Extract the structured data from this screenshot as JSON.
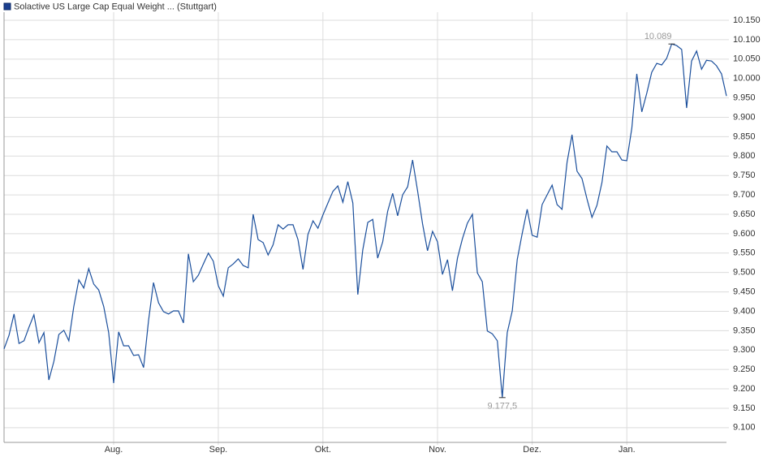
{
  "chart_data": {
    "type": "line",
    "legend_label": "Solactive US Large Cap Equal Weight ... (Stuttgart)",
    "max_label": "10.089",
    "min_label": "9.177,5",
    "categories": [
      null,
      null,
      null,
      null,
      null,
      null,
      null,
      null,
      null,
      null,
      null,
      null,
      null,
      null,
      null,
      null,
      null,
      null,
      null,
      null,
      null,
      null,
      "Aug.",
      null,
      null,
      null,
      null,
      null,
      null,
      null,
      null,
      null,
      null,
      null,
      null,
      null,
      null,
      null,
      null,
      null,
      null,
      null,
      null,
      "Sep.",
      null,
      null,
      null,
      null,
      null,
      null,
      null,
      null,
      null,
      null,
      null,
      null,
      null,
      null,
      null,
      null,
      null,
      null,
      null,
      null,
      "Okt.",
      null,
      null,
      null,
      null,
      null,
      null,
      null,
      null,
      null,
      null,
      null,
      null,
      null,
      null,
      null,
      null,
      null,
      null,
      null,
      null,
      null,
      null,
      "Nov.",
      null,
      null,
      null,
      null,
      null,
      null,
      null,
      null,
      null,
      null,
      null,
      null,
      null,
      null,
      null,
      null,
      null,
      null,
      "Dez.",
      null,
      null,
      null,
      null,
      null,
      null,
      null,
      null,
      null,
      null,
      null,
      null,
      null,
      null,
      null,
      null,
      null,
      null,
      "Jan.",
      null,
      null,
      null,
      null,
      null,
      null,
      null,
      null,
      null,
      null,
      null,
      null,
      null,
      null,
      null,
      null,
      null,
      null,
      null,
      null
    ],
    "values": [
      9.303,
      9.338,
      9.393,
      9.317,
      9.324,
      9.359,
      9.391,
      9.319,
      9.345,
      9.223,
      9.271,
      9.34,
      9.351,
      9.324,
      9.412,
      9.481,
      9.46,
      9.51,
      9.47,
      9.455,
      9.412,
      9.345,
      9.215,
      9.347,
      9.311,
      9.311,
      9.286,
      9.288,
      9.255,
      9.376,
      9.474,
      9.422,
      9.399,
      9.393,
      9.401,
      9.401,
      9.37,
      9.548,
      9.476,
      9.493,
      9.522,
      9.55,
      9.529,
      9.466,
      9.439,
      9.512,
      9.522,
      9.535,
      9.518,
      9.512,
      9.65,
      9.585,
      9.577,
      9.545,
      9.571,
      9.623,
      9.612,
      9.623,
      9.623,
      9.585,
      9.508,
      9.598,
      9.633,
      9.614,
      9.648,
      9.679,
      9.709,
      9.723,
      9.681,
      9.734,
      9.679,
      9.443,
      9.558,
      9.629,
      9.637,
      9.537,
      9.579,
      9.658,
      9.704,
      9.646,
      9.7,
      9.721,
      9.79,
      9.711,
      9.625,
      9.556,
      9.606,
      9.579,
      9.495,
      9.533,
      9.453,
      9.537,
      9.587,
      9.627,
      9.65,
      9.499,
      9.476,
      9.349,
      9.342,
      9.324,
      9.1775,
      9.345,
      9.401,
      9.533,
      9.6,
      9.663,
      9.596,
      9.591,
      9.675,
      9.7,
      9.725,
      9.675,
      9.663,
      9.784,
      9.855,
      9.761,
      9.742,
      9.69,
      9.642,
      9.673,
      9.732,
      9.826,
      9.811,
      9.811,
      9.79,
      9.788,
      9.872,
      10.012,
      9.914,
      9.962,
      10.016,
      10.039,
      10.035,
      10.052,
      10.089,
      10.085,
      10.075,
      9.924,
      10.045,
      10.071,
      10.024,
      10.047,
      10.045,
      10.033,
      10.012,
      9.955
    ],
    "color": "#1b4f9c",
    "ylim": [
      9.062,
      10.171
    ],
    "yticks": [
      {
        "value": 9.1,
        "label": "9.100"
      },
      {
        "value": 9.15,
        "label": "9.150"
      },
      {
        "value": 9.2,
        "label": "9.200"
      },
      {
        "value": 9.25,
        "label": "9.250"
      },
      {
        "value": 9.3,
        "label": "9.300"
      },
      {
        "value": 9.35,
        "label": "9.350"
      },
      {
        "value": 9.4,
        "label": "9.400"
      },
      {
        "value": 9.45,
        "label": "9.450"
      },
      {
        "value": 9.5,
        "label": "9.500"
      },
      {
        "value": 9.55,
        "label": "9.550"
      },
      {
        "value": 9.6,
        "label": "9.600"
      },
      {
        "value": 9.65,
        "label": "9.650"
      },
      {
        "value": 9.7,
        "label": "9.700"
      },
      {
        "value": 9.75,
        "label": "9.750"
      },
      {
        "value": 9.8,
        "label": "9.800"
      },
      {
        "value": 9.85,
        "label": "9.850"
      },
      {
        "value": 9.9,
        "label": "9.900"
      },
      {
        "value": 9.95,
        "label": "9.950"
      },
      {
        "value": 10.0,
        "label": "10.000"
      },
      {
        "value": 10.05,
        "label": "10.050"
      },
      {
        "value": 10.1,
        "label": "10.100"
      },
      {
        "value": 10.15,
        "label": "10.150"
      }
    ],
    "grid": true
  }
}
